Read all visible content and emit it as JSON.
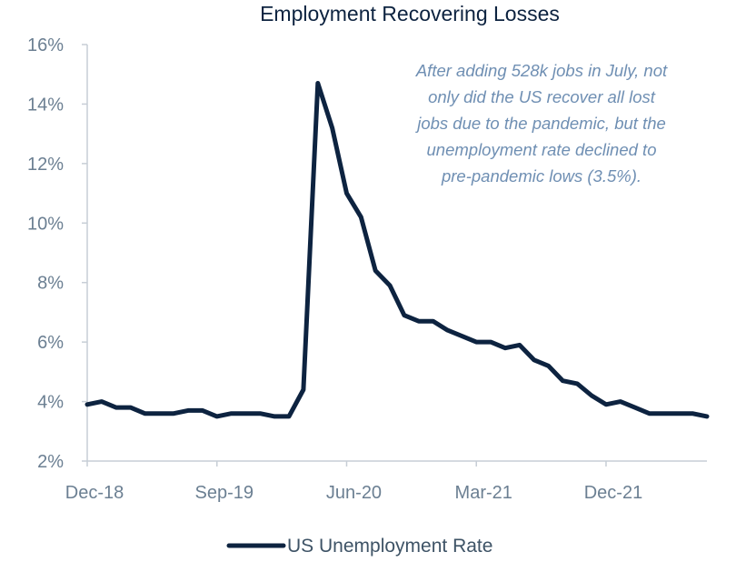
{
  "chart_data": {
    "type": "line",
    "title": "Employment Recovering Losses",
    "xlabel": "",
    "ylabel": "",
    "ylim": [
      2,
      16
    ],
    "y_ticks": [
      2,
      4,
      6,
      8,
      10,
      12,
      14,
      16
    ],
    "y_tick_labels": [
      "2%",
      "4%",
      "6%",
      "8%",
      "10%",
      "12%",
      "14%",
      "16%"
    ],
    "x_tick_labels": [
      "Dec-18",
      "Sep-19",
      "Jun-20",
      "Mar-21",
      "Dec-21"
    ],
    "x_tick_months": [
      "2018-12",
      "2019-09",
      "2020-06",
      "2021-03",
      "2021-12"
    ],
    "x_range": [
      "2018-12",
      "2022-07"
    ],
    "grid": false,
    "legend_position": "bottom",
    "annotation": [
      "After adding 528k jobs in July, not",
      "only did the US recover all lost",
      "jobs due to the pandemic, but the",
      "unemployment rate declined to",
      "pre-pandemic lows (3.5%)."
    ],
    "series": [
      {
        "name": "US Unemployment Rate",
        "color": "#0d2340",
        "x": [
          "2018-12",
          "2019-01",
          "2019-02",
          "2019-03",
          "2019-04",
          "2019-05",
          "2019-06",
          "2019-07",
          "2019-08",
          "2019-09",
          "2019-10",
          "2019-11",
          "2019-12",
          "2020-01",
          "2020-02",
          "2020-03",
          "2020-04",
          "2020-05",
          "2020-06",
          "2020-07",
          "2020-08",
          "2020-09",
          "2020-10",
          "2020-11",
          "2020-12",
          "2021-01",
          "2021-02",
          "2021-03",
          "2021-04",
          "2021-05",
          "2021-06",
          "2021-07",
          "2021-08",
          "2021-09",
          "2021-10",
          "2021-11",
          "2021-12",
          "2022-01",
          "2022-02",
          "2022-03",
          "2022-04",
          "2022-05",
          "2022-06",
          "2022-07"
        ],
        "values": [
          3.9,
          4.0,
          3.8,
          3.8,
          3.6,
          3.6,
          3.6,
          3.7,
          3.7,
          3.5,
          3.6,
          3.6,
          3.6,
          3.5,
          3.5,
          4.4,
          14.7,
          13.2,
          11.0,
          10.2,
          8.4,
          7.9,
          6.9,
          6.7,
          6.7,
          6.4,
          6.2,
          6.0,
          6.0,
          5.8,
          5.9,
          5.4,
          5.2,
          4.7,
          4.6,
          4.2,
          3.9,
          4.0,
          3.8,
          3.6,
          3.6,
          3.6,
          3.6,
          3.5
        ]
      }
    ]
  }
}
